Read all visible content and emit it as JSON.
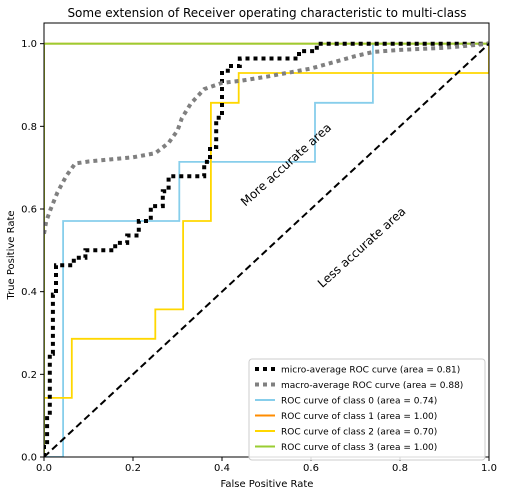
{
  "chart_data": {
    "type": "line",
    "title": "Some extension of Receiver operating characteristic to multi-class",
    "xlabel": "False Positive Rate",
    "ylabel": "True Positive Rate",
    "xlim": [
      0.0,
      1.0
    ],
    "ylim": [
      0.0,
      1.05
    ],
    "xticks": [
      "0.0",
      "0.2",
      "0.4",
      "0.6",
      "0.8",
      "1.0"
    ],
    "xtick_values": [
      0.0,
      0.2,
      0.4,
      0.6,
      0.8,
      1.0
    ],
    "yticks": [
      "0.0",
      "0.2",
      "0.4",
      "0.6",
      "0.8",
      "1.0"
    ],
    "ytick_values": [
      0.0,
      0.2,
      0.4,
      0.6,
      0.8,
      1.0
    ],
    "grid": false,
    "legend_position": "lower-right",
    "annotations": [
      {
        "text": "More accurate area",
        "x": 0.55,
        "y": 0.7,
        "rotation": 42
      },
      {
        "text": "Less accurate area",
        "x": 0.72,
        "y": 0.5,
        "rotation": 42
      }
    ],
    "series": [
      {
        "name": "micro-average ROC curve (area = 0.81)",
        "color": "#000000",
        "style": "dotted",
        "x": [
          0.0,
          0.0,
          0.007,
          0.007,
          0.013,
          0.013,
          0.02,
          0.02,
          0.027,
          0.027,
          0.04,
          0.04,
          0.067,
          0.067,
          0.093,
          0.093,
          0.133,
          0.133,
          0.16,
          0.16,
          0.187,
          0.187,
          0.213,
          0.213,
          0.24,
          0.24,
          0.267,
          0.267,
          0.28,
          0.28,
          0.36,
          0.36,
          0.373,
          0.373,
          0.387,
          0.387,
          0.4,
          0.4,
          0.413,
          0.413,
          0.44,
          0.44,
          0.573,
          0.573,
          0.613,
          0.613,
          0.733,
          0.733,
          1.0
        ],
        "y": [
          0.0,
          0.036,
          0.036,
          0.107,
          0.107,
          0.25,
          0.25,
          0.393,
          0.393,
          0.464,
          0.464,
          0.464,
          0.464,
          0.482,
          0.482,
          0.5,
          0.5,
          0.5,
          0.5,
          0.518,
          0.518,
          0.536,
          0.536,
          0.571,
          0.571,
          0.607,
          0.607,
          0.643,
          0.643,
          0.679,
          0.679,
          0.714,
          0.714,
          0.75,
          0.75,
          0.821,
          0.821,
          0.929,
          0.929,
          0.946,
          0.946,
          0.964,
          0.964,
          0.982,
          0.982,
          1.0,
          1.0,
          1.0,
          1.0
        ]
      },
      {
        "name": "macro-average ROC curve (area = 0.88)",
        "color": "#808080",
        "style": "dotted",
        "x": [
          0.0,
          0.005,
          0.015,
          0.03,
          0.05,
          0.07,
          0.1,
          0.15,
          0.2,
          0.25,
          0.28,
          0.3,
          0.31,
          0.33,
          0.36,
          0.4,
          0.44,
          0.5,
          0.6,
          0.7,
          0.74,
          0.8,
          0.9,
          1.0
        ],
        "y": [
          0.54,
          0.57,
          0.6,
          0.64,
          0.68,
          0.71,
          0.715,
          0.72,
          0.725,
          0.735,
          0.76,
          0.79,
          0.82,
          0.855,
          0.89,
          0.905,
          0.91,
          0.92,
          0.94,
          0.97,
          0.98,
          0.985,
          0.99,
          1.0
        ]
      },
      {
        "name": "ROC curve of class 0 (area = 0.74)",
        "color": "#87ceeb",
        "style": "solid",
        "x": [
          0.0,
          0.043,
          0.043,
          0.304,
          0.304,
          0.609,
          0.609,
          0.739,
          0.739,
          1.0
        ],
        "y": [
          0.0,
          0.0,
          0.571,
          0.571,
          0.714,
          0.714,
          0.857,
          0.857,
          1.0,
          1.0
        ]
      },
      {
        "name": "ROC curve of class 1 (area = 1.00)",
        "color": "#ff8c00",
        "style": "solid",
        "x": [
          0.0,
          0.0,
          1.0
        ],
        "y": [
          0.0,
          1.0,
          1.0
        ]
      },
      {
        "name": "ROC curve of class 2 (area = 0.70)",
        "color": "#ffd700",
        "style": "solid",
        "x": [
          0.0,
          0.0,
          0.0625,
          0.0625,
          0.25,
          0.25,
          0.3125,
          0.3125,
          0.375,
          0.375,
          0.4375,
          0.4375,
          1.0,
          1.0
        ],
        "y": [
          0.0,
          0.143,
          0.143,
          0.286,
          0.286,
          0.357,
          0.357,
          0.571,
          0.571,
          0.857,
          0.857,
          0.929,
          0.929,
          1.0
        ]
      },
      {
        "name": "ROC curve of class 3 (area = 1.00)",
        "color": "#9acd32",
        "style": "solid",
        "x": [
          0.0,
          0.0,
          1.0
        ],
        "y": [
          0.0,
          1.0,
          1.0
        ]
      }
    ],
    "diagonal": {
      "x": [
        0,
        1
      ],
      "y": [
        0,
        1
      ],
      "color": "#000000",
      "style": "dashed"
    }
  }
}
